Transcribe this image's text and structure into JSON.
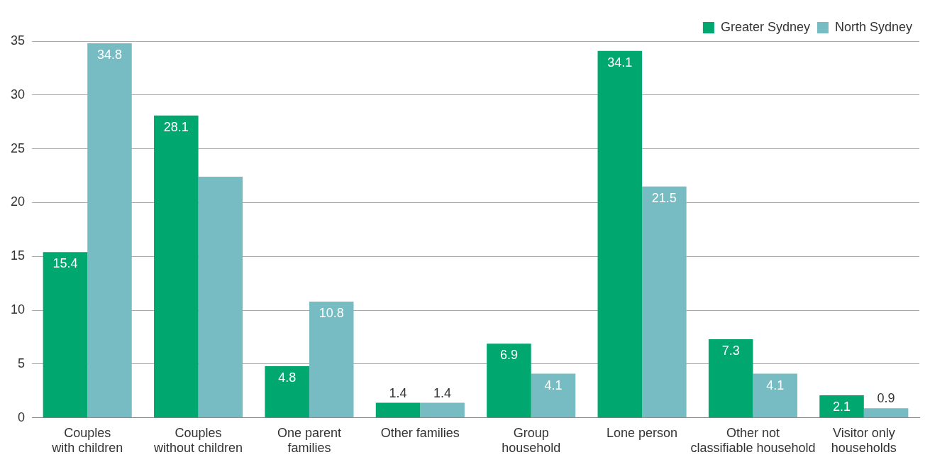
{
  "chart_data": {
    "type": "bar",
    "categories": [
      "Couples\nwith children",
      "Couples\nwithout children",
      "One parent\nfamilies",
      "Other families",
      "Group\nhousehold",
      "Lone person",
      "Other not\nclassifiable household",
      "Visitor only\nhouseholds"
    ],
    "series": [
      {
        "name": "Greater Sydney",
        "color": "#00a870",
        "values": [
          15.4,
          28.1,
          4.8,
          1.4,
          6.9,
          34.1,
          7.3,
          2.1
        ],
        "value_labels": [
          "15.4",
          "28.1",
          "4.8",
          "1.4",
          "6.9",
          "34.1",
          "7.3",
          "2.1"
        ]
      },
      {
        "name": "North Sydney",
        "color": "#77bcc2",
        "values": [
          34.8,
          22.4,
          10.8,
          1.4,
          4.1,
          21.5,
          4.1,
          0.9
        ],
        "value_labels": [
          "34.8",
          null,
          "10.8",
          "1.4",
          "4.1",
          "21.5",
          "4.1",
          "0.9"
        ]
      }
    ],
    "ylim": [
      0,
      35
    ],
    "yticks": [
      0,
      5,
      10,
      15,
      20,
      25,
      30,
      35
    ],
    "grid": "y",
    "legend": "top right"
  }
}
